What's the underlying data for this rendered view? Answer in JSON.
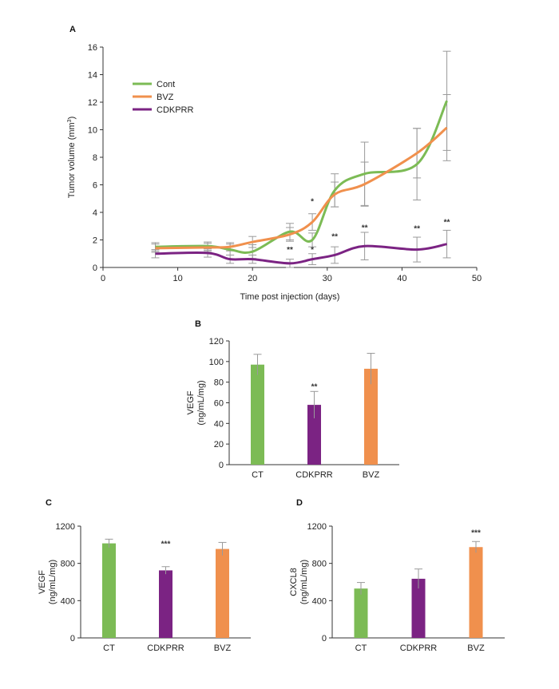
{
  "chart_data": [
    {
      "panel": "A",
      "type": "line",
      "xlabel": "Time post injection (days)",
      "ylabel": "Tumor volume (mm³)",
      "xlim": [
        0,
        50
      ],
      "ylim": [
        0,
        16
      ],
      "xticks": [
        0,
        10,
        20,
        30,
        40,
        50
      ],
      "yticks": [
        0,
        2,
        4,
        6,
        8,
        10,
        12,
        14,
        16
      ],
      "legend_position": "top-left",
      "series": [
        {
          "name": "Cont",
          "color": "#7cbb55",
          "x": [
            7,
            14,
            17,
            20,
            25,
            28,
            31,
            35,
            42,
            46
          ],
          "y": [
            1.5,
            1.55,
            1.3,
            1.15,
            2.6,
            2.0,
            5.6,
            6.8,
            7.5,
            12.1
          ],
          "err": [
            0.3,
            0.3,
            0.4,
            0.5,
            0.6,
            0.5,
            1.2,
            2.3,
            2.6,
            3.6
          ]
        },
        {
          "name": "BVZ",
          "color": "#f0904d",
          "x": [
            7,
            14,
            17,
            20,
            25,
            28,
            31,
            35,
            42,
            46
          ],
          "y": [
            1.4,
            1.45,
            1.5,
            1.85,
            2.4,
            3.3,
            5.3,
            6.05,
            8.3,
            10.15
          ],
          "err": [
            0.3,
            0.3,
            0.3,
            0.4,
            0.5,
            0.6,
            0.9,
            1.6,
            1.8,
            2.4
          ]
        },
        {
          "name": "CDKPRR",
          "color": "#7b2383",
          "x": [
            7,
            14,
            17,
            20,
            25,
            28,
            31,
            35,
            42,
            46
          ],
          "y": [
            1.0,
            1.05,
            0.6,
            0.6,
            0.3,
            0.6,
            0.9,
            1.55,
            1.3,
            1.7
          ],
          "err": [
            0.3,
            0.3,
            0.3,
            0.3,
            0.3,
            0.4,
            0.6,
            1.0,
            0.9,
            1.0
          ]
        }
      ],
      "annotations": [
        {
          "text": "*",
          "x": 28,
          "y": 4.6
        },
        {
          "text": "*",
          "x": 28,
          "y": 1.1
        },
        {
          "text": "**",
          "x": 25,
          "y": 1.1
        },
        {
          "text": "**",
          "x": 31,
          "y": 2.05
        },
        {
          "text": "**",
          "x": 35,
          "y": 2.7
        },
        {
          "text": "**",
          "x": 42,
          "y": 2.65
        },
        {
          "text": "**",
          "x": 46,
          "y": 3.1
        }
      ]
    },
    {
      "panel": "B",
      "type": "bar",
      "categories": [
        "CT",
        "CDKPRR",
        "BVZ"
      ],
      "values": [
        97,
        58,
        93
      ],
      "errors": [
        10,
        13,
        15
      ],
      "colors": [
        "#7cbb55",
        "#7b2383",
        "#f0904d"
      ],
      "ylabel": "VEGF",
      "ylabel_unit": "(ng/mL/mg)",
      "ylim": [
        0,
        120
      ],
      "yticks": [
        0,
        20,
        40,
        60,
        80,
        100,
        120
      ],
      "annotations": [
        {
          "category_index": 1,
          "text": "**",
          "y": 73
        }
      ]
    },
    {
      "panel": "C",
      "type": "bar",
      "categories": [
        "CT",
        "CDKPRR",
        "BVZ"
      ],
      "values": [
        1015,
        725,
        955
      ],
      "errors": [
        45,
        40,
        70
      ],
      "colors": [
        "#7cbb55",
        "#7b2383",
        "#f0904d"
      ],
      "ylabel": "VEGF",
      "ylabel_unit": "(ng/mL/mg)",
      "ylim": [
        0,
        1200
      ],
      "yticks": [
        0,
        400,
        800,
        1200
      ],
      "annotations": [
        {
          "category_index": 1,
          "text": "***",
          "y": 980
        }
      ]
    },
    {
      "panel": "D",
      "type": "bar",
      "categories": [
        "CT",
        "CDKPRR",
        "BVZ"
      ],
      "values": [
        530,
        635,
        975
      ],
      "errors": [
        65,
        105,
        60
      ],
      "colors": [
        "#7cbb55",
        "#7b2383",
        "#f0904d"
      ],
      "ylabel": "CXCL8",
      "ylabel_unit": "(ng/mL/mg)",
      "ylim": [
        0,
        1200
      ],
      "yticks": [
        0,
        400,
        800,
        1200
      ],
      "annotations": [
        {
          "category_index": 2,
          "text": "***",
          "y": 1100
        }
      ]
    }
  ]
}
